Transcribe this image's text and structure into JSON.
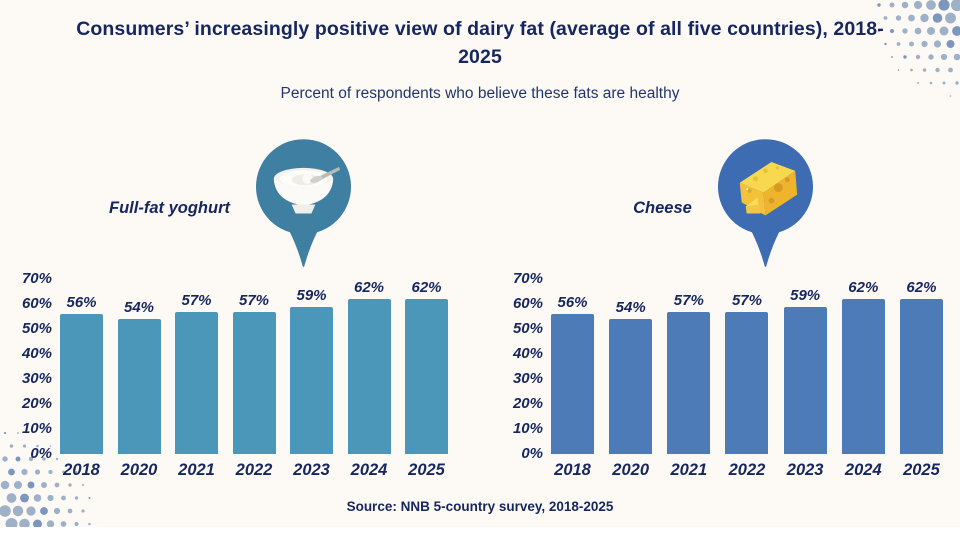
{
  "title": "Consumers’ increasingly positive view of dairy fat (average of all five countries), 2018-2025",
  "subtitle": "Percent of respondents who believe these fats are healthy",
  "source": "Source: NNB 5-country survey, 2018-2025",
  "colors": {
    "card_background": "#fdfaf5",
    "text_navy": "#16265f",
    "yoghurt_bar": "#4b97ba",
    "cheese_bar": "#4d7bb8",
    "yoghurt_balloon": "#3f7fa2",
    "cheese_balloon": "#3d6cb2",
    "halftone_dot": "#9fb1c9",
    "halftone_dot_dark": "#7d96bb"
  },
  "chart_data": [
    {
      "type": "bar",
      "title": "Full-fat yoghurt",
      "icon": "yoghurt-bowl-icon",
      "categories": [
        "2018",
        "2020",
        "2021",
        "2022",
        "2023",
        "2024",
        "2025"
      ],
      "values": [
        56,
        54,
        57,
        57,
        59,
        62,
        62
      ],
      "value_labels": [
        "56%",
        "54%",
        "57%",
        "57%",
        "59%",
        "62%",
        "62%"
      ],
      "ytick_labels": [
        "70%",
        "60%",
        "50%",
        "40%",
        "30%",
        "20%",
        "10%",
        "0%"
      ],
      "ylim": [
        0,
        70
      ],
      "grid": false,
      "bar_color": "#4b97ba"
    },
    {
      "type": "bar",
      "title": "Cheese",
      "icon": "cheese-icon",
      "categories": [
        "2018",
        "2020",
        "2021",
        "2022",
        "2023",
        "2024",
        "2025"
      ],
      "values": [
        56,
        54,
        57,
        57,
        59,
        62,
        62
      ],
      "value_labels": [
        "56%",
        "54%",
        "57%",
        "57%",
        "59%",
        "62%",
        "62%"
      ],
      "ytick_labels": [
        "70%",
        "60%",
        "50%",
        "40%",
        "30%",
        "20%",
        "10%",
        "0%"
      ],
      "ylim": [
        0,
        70
      ],
      "grid": false,
      "bar_color": "#4d7bb8"
    }
  ]
}
